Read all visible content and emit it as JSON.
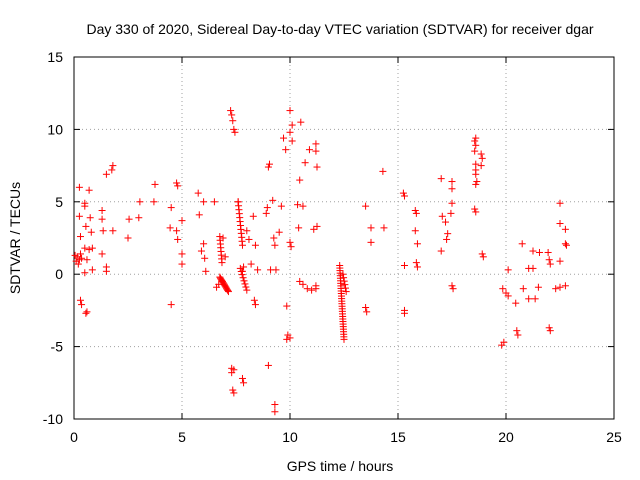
{
  "chart_data": {
    "type": "scatter",
    "title": "Day 330 of 2020, Sidereal Day-to-day VTEC variation (SDTVAR) for receiver dgar",
    "xlabel": "GPS time / hours",
    "ylabel": "SDTVAR / TECUs",
    "xlim": [
      0,
      25
    ],
    "ylim": [
      -10,
      15
    ],
    "xticks": [
      0,
      5,
      10,
      15,
      20,
      25
    ],
    "yticks": [
      -10,
      -5,
      0,
      5,
      10,
      15
    ],
    "grid": true,
    "marker": "+",
    "color": "#ff0000",
    "series": [
      {
        "name": "SDTVAR",
        "points": [
          [
            0.05,
            1.3
          ],
          [
            0.1,
            0.9
          ],
          [
            0.15,
            1.2
          ],
          [
            0.2,
            0.7
          ],
          [
            0.25,
            1.0
          ],
          [
            0.3,
            1.4
          ],
          [
            0.35,
            1.1
          ],
          [
            0.25,
            6.0
          ],
          [
            0.25,
            4.0
          ],
          [
            0.3,
            2.6
          ],
          [
            0.3,
            -1.8
          ],
          [
            0.35,
            -2.1
          ],
          [
            0.5,
            4.9
          ],
          [
            0.5,
            4.7
          ],
          [
            0.55,
            3.3
          ],
          [
            0.5,
            1.8
          ],
          [
            0.6,
            1.0
          ],
          [
            0.6,
            -2.6
          ],
          [
            0.55,
            -2.7
          ],
          [
            0.5,
            0.1
          ],
          [
            0.7,
            1.7
          ],
          [
            0.7,
            5.8
          ],
          [
            0.75,
            3.9
          ],
          [
            0.8,
            2.9
          ],
          [
            0.85,
            1.8
          ],
          [
            0.85,
            0.3
          ],
          [
            1.3,
            4.4
          ],
          [
            1.3,
            3.8
          ],
          [
            1.35,
            3.0
          ],
          [
            1.3,
            1.4
          ],
          [
            1.5,
            6.9
          ],
          [
            1.5,
            0.5
          ],
          [
            1.5,
            0.2
          ],
          [
            1.75,
            7.2
          ],
          [
            1.8,
            7.5
          ],
          [
            1.8,
            3.0
          ],
          [
            2.55,
            3.8
          ],
          [
            2.5,
            2.5
          ],
          [
            3.0,
            3.9
          ],
          [
            3.05,
            5.0
          ],
          [
            3.75,
            6.2
          ],
          [
            3.7,
            5.0
          ],
          [
            4.5,
            4.6
          ],
          [
            4.45,
            3.2
          ],
          [
            4.5,
            -2.1
          ],
          [
            4.75,
            6.3
          ],
          [
            4.8,
            6.1
          ],
          [
            4.75,
            3.0
          ],
          [
            4.8,
            2.4
          ],
          [
            5.0,
            3.7
          ],
          [
            5.0,
            1.4
          ],
          [
            5.0,
            0.7
          ],
          [
            5.75,
            5.6
          ],
          [
            5.8,
            4.1
          ],
          [
            5.9,
            1.6
          ],
          [
            6.0,
            5.0
          ],
          [
            6.0,
            2.1
          ],
          [
            6.05,
            1.1
          ],
          [
            6.1,
            0.2
          ],
          [
            6.5,
            5.0
          ],
          [
            6.6,
            -0.9
          ],
          [
            6.7,
            -0.7
          ],
          [
            6.9,
            2.5
          ],
          [
            7.0,
            1.2
          ],
          [
            7.3,
            -6.5
          ],
          [
            7.3,
            -6.8
          ],
          [
            7.4,
            -6.6
          ],
          [
            7.35,
            -8.0
          ],
          [
            7.4,
            -8.2
          ],
          [
            7.8,
            -7.2
          ],
          [
            7.85,
            -7.5
          ],
          [
            7.25,
            11.3
          ],
          [
            7.3,
            11.0
          ],
          [
            7.35,
            10.6
          ],
          [
            7.4,
            10.0
          ],
          [
            7.45,
            9.8
          ],
          [
            7.6,
            5.0
          ],
          [
            7.8,
            0.2
          ],
          [
            7.85,
            0.5
          ],
          [
            8.0,
            3.0
          ],
          [
            8.1,
            2.4
          ],
          [
            8.2,
            0.7
          ],
          [
            8.3,
            4.0
          ],
          [
            8.35,
            -1.8
          ],
          [
            8.4,
            -2.1
          ],
          [
            8.4,
            2.0
          ],
          [
            8.5,
            0.3
          ],
          [
            8.9,
            4.2
          ],
          [
            8.95,
            4.6
          ],
          [
            9.0,
            7.4
          ],
          [
            9.05,
            7.6
          ],
          [
            9.1,
            0.3
          ],
          [
            9.0,
            -6.3
          ],
          [
            9.2,
            5.1
          ],
          [
            9.25,
            2.5
          ],
          [
            9.3,
            2.0
          ],
          [
            9.35,
            0.3
          ],
          [
            9.3,
            -9.0
          ],
          [
            9.3,
            -9.5
          ],
          [
            9.5,
            2.9
          ],
          [
            9.6,
            4.7
          ],
          [
            9.7,
            9.4
          ],
          [
            9.8,
            8.6
          ],
          [
            9.85,
            -2.2
          ],
          [
            9.85,
            -4.5
          ],
          [
            9.9,
            -4.2
          ],
          [
            10.0,
            -4.4
          ],
          [
            10.0,
            2.2
          ],
          [
            10.05,
            1.9
          ],
          [
            10.0,
            9.8
          ],
          [
            10.0,
            11.3
          ],
          [
            10.1,
            9.2
          ],
          [
            10.1,
            10.3
          ],
          [
            10.35,
            4.8
          ],
          [
            10.4,
            3.2
          ],
          [
            10.45,
            6.5
          ],
          [
            10.5,
            10.5
          ],
          [
            10.45,
            -0.5
          ],
          [
            10.6,
            -0.7
          ],
          [
            10.6,
            4.7
          ],
          [
            10.7,
            7.7
          ],
          [
            10.8,
            -1.0
          ],
          [
            10.9,
            8.6
          ],
          [
            11.0,
            -1.1
          ],
          [
            11.1,
            3.1
          ],
          [
            11.2,
            9.0
          ],
          [
            11.2,
            8.5
          ],
          [
            11.25,
            7.4
          ],
          [
            11.2,
            -0.8
          ],
          [
            11.2,
            -1.0
          ],
          [
            11.25,
            3.3
          ],
          [
            13.5,
            4.7
          ],
          [
            13.5,
            -2.3
          ],
          [
            13.55,
            -2.6
          ],
          [
            13.75,
            2.2
          ],
          [
            13.75,
            3.2
          ],
          [
            14.3,
            7.1
          ],
          [
            14.35,
            3.2
          ],
          [
            15.25,
            5.6
          ],
          [
            15.3,
            5.4
          ],
          [
            15.3,
            0.6
          ],
          [
            15.3,
            -2.5
          ],
          [
            15.3,
            -2.7
          ],
          [
            15.8,
            4.4
          ],
          [
            15.85,
            4.2
          ],
          [
            15.8,
            3.0
          ],
          [
            15.9,
            2.1
          ],
          [
            15.85,
            0.8
          ],
          [
            15.9,
            0.5
          ],
          [
            17.0,
            6.6
          ],
          [
            17.05,
            4.0
          ],
          [
            17.0,
            1.6
          ],
          [
            17.2,
            3.6
          ],
          [
            17.25,
            2.4
          ],
          [
            17.3,
            2.8
          ],
          [
            17.5,
            6.4
          ],
          [
            17.5,
            5.9
          ],
          [
            17.5,
            4.9
          ],
          [
            17.45,
            4.2
          ],
          [
            17.5,
            -0.8
          ],
          [
            17.55,
            -1.0
          ],
          [
            18.55,
            9.2
          ],
          [
            18.6,
            9.4
          ],
          [
            18.6,
            8.9
          ],
          [
            18.55,
            8.5
          ],
          [
            18.6,
            7.6
          ],
          [
            18.6,
            7.2
          ],
          [
            18.6,
            6.9
          ],
          [
            18.65,
            6.4
          ],
          [
            18.6,
            6.2
          ],
          [
            18.55,
            4.5
          ],
          [
            18.6,
            4.3
          ],
          [
            18.85,
            8.3
          ],
          [
            18.9,
            8.0
          ],
          [
            18.85,
            7.5
          ],
          [
            18.9,
            1.4
          ],
          [
            18.95,
            1.2
          ],
          [
            19.85,
            -1.0
          ],
          [
            19.8,
            -4.9
          ],
          [
            19.9,
            -4.7
          ],
          [
            20.0,
            -1.3
          ],
          [
            20.1,
            -1.5
          ],
          [
            20.1,
            0.3
          ],
          [
            20.45,
            -2.0
          ],
          [
            20.5,
            -3.9
          ],
          [
            20.55,
            -4.2
          ],
          [
            20.75,
            2.1
          ],
          [
            20.8,
            -1.0
          ],
          [
            21.05,
            0.4
          ],
          [
            21.05,
            -1.7
          ],
          [
            21.25,
            0.4
          ],
          [
            21.25,
            1.6
          ],
          [
            21.35,
            -1.7
          ],
          [
            21.5,
            -0.9
          ],
          [
            21.55,
            1.5
          ],
          [
            21.95,
            1.5
          ],
          [
            22.0,
            1.0
          ],
          [
            22.05,
            0.7
          ],
          [
            22.0,
            -3.7
          ],
          [
            22.05,
            -3.9
          ],
          [
            22.3,
            -1.0
          ],
          [
            22.5,
            4.9
          ],
          [
            22.5,
            3.5
          ],
          [
            22.5,
            0.9
          ],
          [
            22.5,
            -0.9
          ],
          [
            22.75,
            3.1
          ],
          [
            22.75,
            2.1
          ],
          [
            22.8,
            2.0
          ],
          [
            22.75,
            -0.8
          ]
        ],
        "clusters": [
          {
            "x_start": 6.75,
            "x_end": 7.15,
            "y_start": -0.2,
            "y_end": -1.2,
            "count": 14
          },
          {
            "x_start": 6.75,
            "x_end": 6.85,
            "y_start": 2.6,
            "y_end": 0.8,
            "count": 8
          },
          {
            "x_start": 7.6,
            "x_end": 7.8,
            "y_start": 5.0,
            "y_end": 2.0,
            "count": 12
          },
          {
            "x_start": 7.7,
            "x_end": 8.0,
            "y_start": 0.4,
            "y_end": -1.1,
            "count": 8
          },
          {
            "x_start": 12.3,
            "x_end": 12.5,
            "y_start": 0.6,
            "y_end": -4.5,
            "count": 30
          },
          {
            "x_start": 12.45,
            "x_end": 12.6,
            "y_start": 0.0,
            "y_end": -1.2,
            "count": 6
          }
        ]
      }
    ]
  }
}
